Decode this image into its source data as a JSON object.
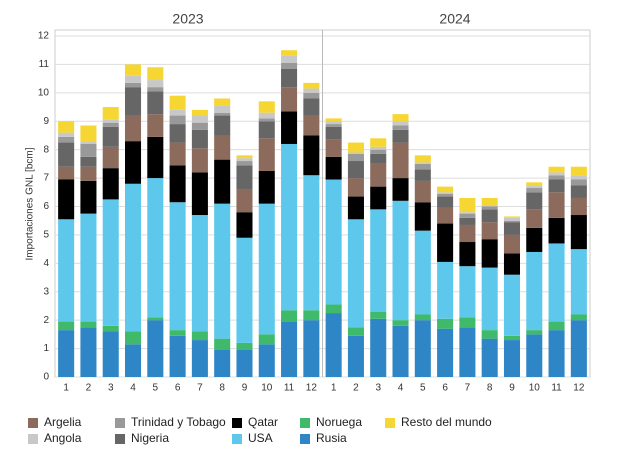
{
  "chart_data": {
    "type": "stacked-bar",
    "years": [
      "2023",
      "2024"
    ],
    "y_label": "Importaciones GNL [bcm]",
    "categories": [
      "1",
      "2",
      "3",
      "4",
      "5",
      "6",
      "7",
      "8",
      "9",
      "10",
      "11",
      "12",
      "1",
      "2",
      "3",
      "4",
      "5",
      "6",
      "7",
      "8",
      "9",
      "10",
      "11",
      "12"
    ],
    "ylim": [
      0,
      12
    ],
    "yticks": [
      0,
      1,
      2,
      3,
      4,
      5,
      6,
      7,
      8,
      9,
      10,
      11,
      12
    ],
    "grid": true,
    "series": [
      {
        "name": "Rusia",
        "color": "#2f86c6",
        "values": [
          1.65,
          1.75,
          1.6,
          1.15,
          2.0,
          1.45,
          1.3,
          0.95,
          0.95,
          1.15,
          1.95,
          2.0,
          2.25,
          1.45,
          2.05,
          1.8,
          2.0,
          1.7,
          1.75,
          1.35,
          1.3,
          1.5,
          1.65,
          2.0
        ]
      },
      {
        "name": "Noruega",
        "color": "#3fba6a",
        "values": [
          0.3,
          0.2,
          0.2,
          0.45,
          0.1,
          0.2,
          0.3,
          0.4,
          0.25,
          0.35,
          0.4,
          0.35,
          0.3,
          0.3,
          0.25,
          0.2,
          0.2,
          0.35,
          0.35,
          0.3,
          0.15,
          0.15,
          0.3,
          0.2
        ]
      },
      {
        "name": "USA",
        "color": "#5ec8ec",
        "values": [
          3.6,
          3.8,
          4.45,
          5.2,
          4.9,
          4.5,
          4.1,
          4.75,
          3.7,
          4.6,
          5.85,
          4.75,
          4.4,
          3.8,
          3.6,
          4.2,
          2.95,
          2.0,
          1.8,
          2.2,
          2.15,
          2.75,
          2.75,
          2.3
        ]
      },
      {
        "name": "Qatar",
        "color": "#000000",
        "values": [
          1.4,
          1.15,
          1.1,
          1.5,
          1.45,
          1.3,
          1.5,
          1.55,
          0.9,
          1.15,
          1.15,
          1.4,
          0.8,
          0.8,
          0.8,
          0.8,
          1.0,
          1.35,
          0.85,
          1.0,
          0.75,
          0.85,
          0.9,
          1.2
        ]
      },
      {
        "name": "Argelia",
        "color": "#8c6b5c",
        "values": [
          0.45,
          0.5,
          0.75,
          0.9,
          0.8,
          0.8,
          0.85,
          0.85,
          0.8,
          1.15,
          0.85,
          0.7,
          0.6,
          0.65,
          0.8,
          1.25,
          0.75,
          0.55,
          0.6,
          0.6,
          0.65,
          0.65,
          0.9,
          0.6
        ]
      },
      {
        "name": "Nigeria",
        "color": "#666666",
        "values": [
          0.85,
          0.35,
          0.7,
          1.0,
          0.8,
          0.65,
          0.65,
          0.7,
          0.85,
          0.6,
          0.65,
          0.6,
          0.45,
          0.6,
          0.35,
          0.45,
          0.4,
          0.4,
          0.25,
          0.45,
          0.45,
          0.6,
          0.45,
          0.45
        ]
      },
      {
        "name": "Trinidad y Tobago",
        "color": "#999999",
        "values": [
          0.2,
          0.45,
          0.15,
          0.15,
          0.15,
          0.3,
          0.25,
          0.1,
          0.15,
          0.1,
          0.2,
          0.2,
          0.1,
          0.25,
          0.15,
          0.15,
          0.2,
          0.1,
          0.15,
          0.1,
          0.05,
          0.15,
          0.15,
          0.2
        ]
      },
      {
        "name": "Angola",
        "color": "#c8c8c8",
        "values": [
          0.15,
          0.1,
          0.1,
          0.25,
          0.25,
          0.2,
          0.25,
          0.25,
          0.1,
          0.2,
          0.25,
          0.15,
          0.1,
          0.05,
          0.1,
          0.15,
          0.05,
          0.05,
          0.05,
          0.05,
          0.1,
          0.1,
          0.1,
          0.15
        ]
      },
      {
        "name": "Resto del mundo",
        "color": "#f5d633",
        "values": [
          0.4,
          0.55,
          0.45,
          0.4,
          0.45,
          0.5,
          0.2,
          0.25,
          0.1,
          0.4,
          0.2,
          0.2,
          0.1,
          0.35,
          0.3,
          0.25,
          0.25,
          0.2,
          0.5,
          0.25,
          0.05,
          0.1,
          0.2,
          0.3
        ]
      }
    ]
  }
}
